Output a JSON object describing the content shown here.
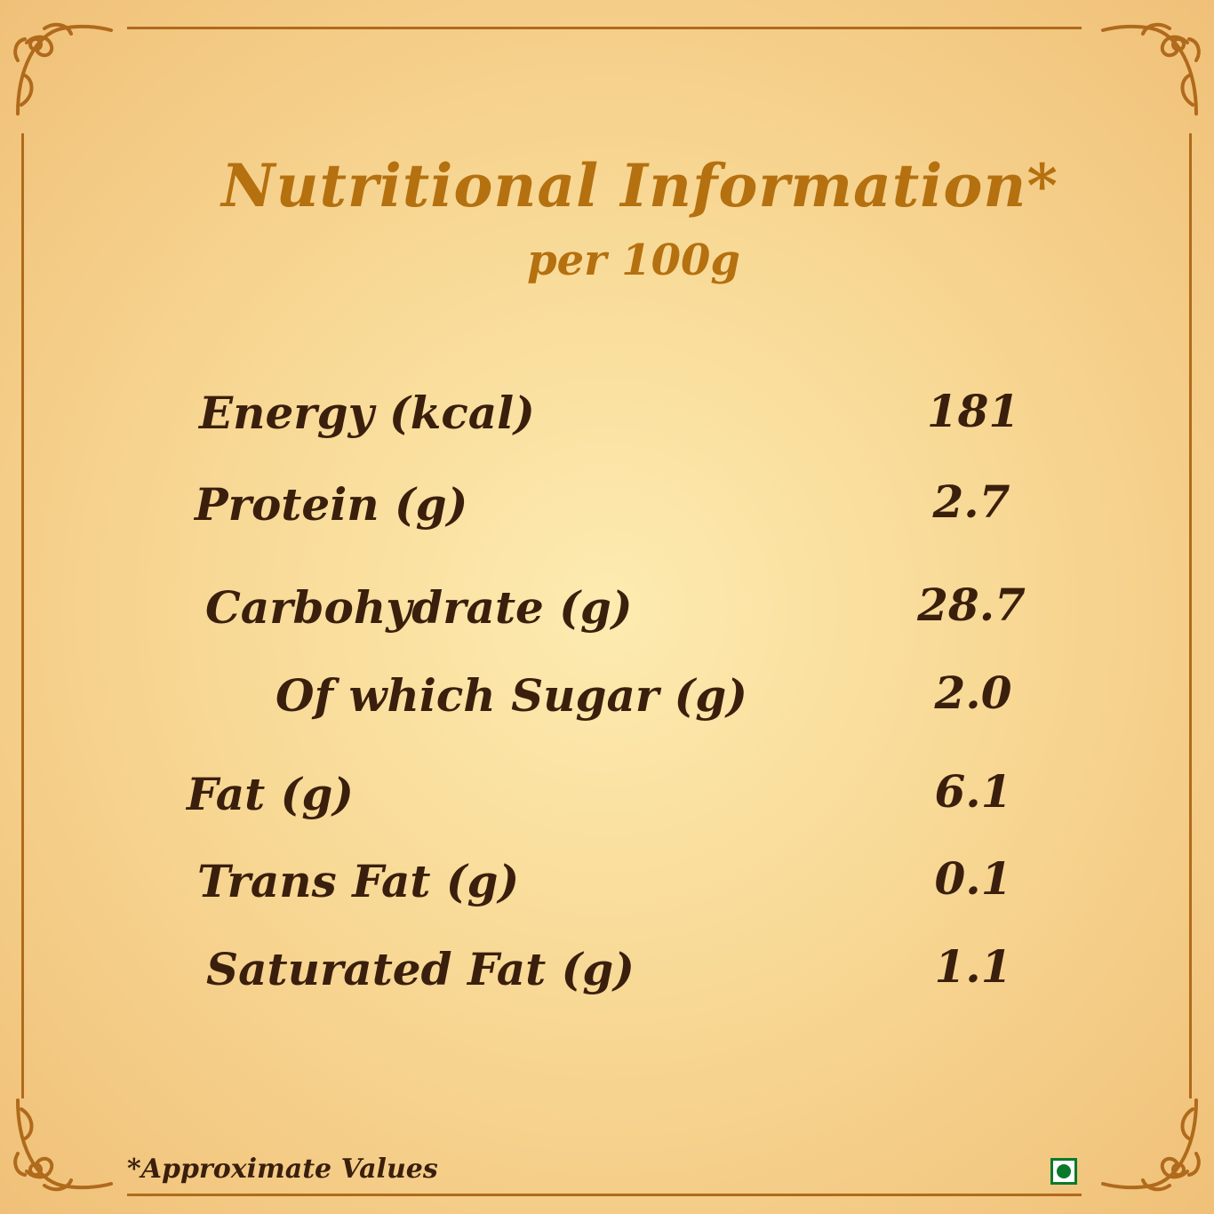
{
  "header": {
    "title": "Nutritional Information*",
    "subtitle": "per 100g"
  },
  "nutrition": [
    {
      "label": "Energy (kcal)",
      "value": "181"
    },
    {
      "label": "Protein (g)",
      "value": "2.7"
    },
    {
      "label": "Carbohydrate (g)",
      "value": "28.7"
    },
    {
      "label": "Of which Sugar (g)",
      "value": "2.0"
    },
    {
      "label": "Fat (g)",
      "value": "6.1"
    },
    {
      "label": "Trans Fat (g)",
      "value": "0.1"
    },
    {
      "label": "Saturated Fat (g)",
      "value": "1.1"
    }
  ],
  "footer": {
    "note": "*Approximate Values"
  },
  "icons": {
    "corner_ornament": "corner-ornament-icon",
    "veg_mark": "vegetarian-mark-icon"
  },
  "colors": {
    "title": "#b5700f",
    "body_text": "#3a1f0d",
    "border": "#b06a1c",
    "veg_green": "#0a7a2a"
  }
}
